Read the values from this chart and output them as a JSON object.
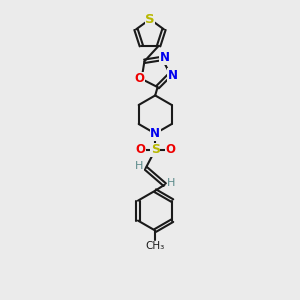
{
  "background_color": "#ebebeb",
  "bond_color": "#1a1a1a",
  "bond_width": 1.5,
  "S_color": "#b8b800",
  "N_color": "#0000ee",
  "O_color": "#ee0000",
  "H_color": "#5a8a8a",
  "text_fontsize": 8.5,
  "fig_width": 3.0,
  "fig_height": 3.0,
  "dpi": 100,
  "xlim": [
    0,
    10
  ],
  "ylim": [
    0,
    17
  ]
}
